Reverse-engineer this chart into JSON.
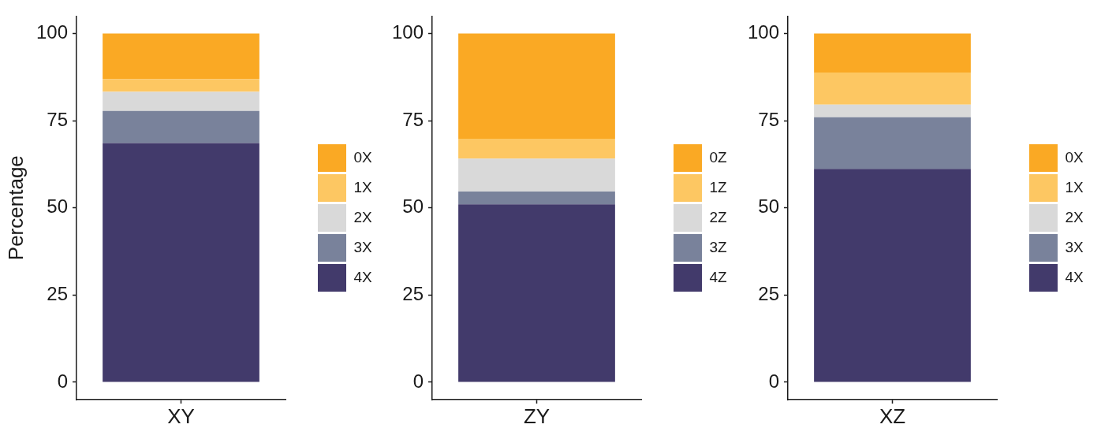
{
  "chart_data": [
    {
      "type": "bar",
      "categories": [
        "XY"
      ],
      "series": [
        {
          "name": "4X",
          "color": "#423a6b",
          "values": [
            68.6
          ]
        },
        {
          "name": "3X",
          "color": "#79829b",
          "values": [
            9.2
          ]
        },
        {
          "name": "2X",
          "color": "#d9d9d9",
          "values": [
            5.5
          ]
        },
        {
          "name": "1X",
          "color": "#fdc762",
          "values": [
            3.6
          ]
        },
        {
          "name": "0X",
          "color": "#faa924",
          "values": [
            13.1
          ]
        }
      ],
      "stacked": true,
      "ylabel": "Percentage",
      "ylim": [
        -5,
        105
      ],
      "yticks": [
        0,
        25,
        50,
        75,
        100
      ],
      "legend": "right"
    },
    {
      "type": "bar",
      "categories": [
        "ZY"
      ],
      "series": [
        {
          "name": "4Z",
          "color": "#423a6b",
          "values": [
            51.0
          ]
        },
        {
          "name": "3Z",
          "color": "#79829b",
          "values": [
            3.7
          ]
        },
        {
          "name": "2Z",
          "color": "#d9d9d9",
          "values": [
            9.4
          ]
        },
        {
          "name": "1Z",
          "color": "#fdc762",
          "values": [
            5.7
          ]
        },
        {
          "name": "0Z",
          "color": "#faa924",
          "values": [
            30.2
          ]
        }
      ],
      "stacked": true,
      "ylim": [
        -5,
        105
      ],
      "yticks": [
        0,
        25,
        50,
        75,
        100
      ],
      "legend": "right"
    },
    {
      "type": "bar",
      "categories": [
        "XZ"
      ],
      "series": [
        {
          "name": "4X",
          "color": "#423a6b",
          "values": [
            61.2
          ]
        },
        {
          "name": "3X",
          "color": "#79829b",
          "values": [
            14.8
          ]
        },
        {
          "name": "2X",
          "color": "#d9d9d9",
          "values": [
            3.6
          ]
        },
        {
          "name": "1X",
          "color": "#fdc762",
          "values": [
            9.2
          ]
        },
        {
          "name": "0X",
          "color": "#faa924",
          "values": [
            11.2
          ]
        }
      ],
      "stacked": true,
      "ylim": [
        -5,
        105
      ],
      "yticks": [
        0,
        25,
        50,
        75,
        100
      ],
      "legend": "right"
    }
  ]
}
